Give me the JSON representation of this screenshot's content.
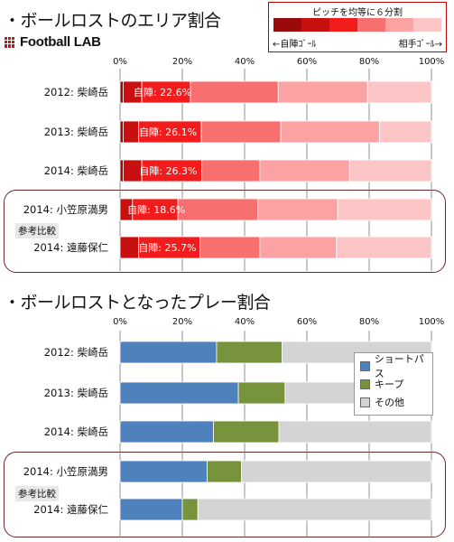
{
  "titles": {
    "chart1": "・ボールロストのエリア割合",
    "chart2": "・ボールロストとなったプレー割合"
  },
  "logo": {
    "text": "Football LAB",
    "color": "#c8161d"
  },
  "legend1": {
    "title": "ピッチを均等に６分割",
    "left": "←自陣ｺﾞｰﾙ",
    "right": "相手ｺﾞｰﾙ→",
    "colors": [
      "#9b0a0a",
      "#c91010",
      "#f21c1c",
      "#f86f6f",
      "#fba3a3",
      "#fdc6c6"
    ]
  },
  "ref_label": "参考比較",
  "chart_data": [
    {
      "type": "bar",
      "stacked": "horizontal",
      "title": "・ボールロストのエリア割合",
      "xlim": [
        0,
        100
      ],
      "xticks": [
        "0%",
        "20%",
        "40%",
        "60%",
        "80%",
        "100%"
      ],
      "categories": [
        "2012: 柴崎岳",
        "2013: 柴崎岳",
        "2014: 柴崎岳",
        "2014: 小笠原満男",
        "2014: 遠藤保仁"
      ],
      "series": [
        {
          "values": [
            1,
            1,
            1,
            0,
            0
          ],
          "color": "#9b0a0a"
        },
        {
          "values": [
            6,
            5,
            6,
            4,
            6
          ],
          "color": "#c91010"
        },
        {
          "values": [
            15.6,
            20.1,
            19.3,
            14.6,
            19.7
          ],
          "color": "#f21c1c"
        },
        {
          "values": [
            28.2,
            25.5,
            18.6,
            25.7,
            19.2
          ],
          "color": "#f86f6f"
        },
        {
          "values": [
            28.7,
            31.7,
            28.8,
            25.6,
            24.6
          ],
          "color": "#fba3a3"
        },
        {
          "values": [
            20.5,
            16.7,
            26.3,
            30.1,
            30.5
          ],
          "color": "#fdc6c6"
        }
      ],
      "annotation_prefix": "自陣: ",
      "annotations": [
        "22.6%",
        "26.1%",
        "26.3%",
        "18.6%",
        "25.7%"
      ]
    },
    {
      "type": "bar",
      "stacked": "horizontal",
      "title": "・ボールロストとなったプレー割合",
      "xlim": [
        0,
        100
      ],
      "xticks": [
        "0%",
        "20%",
        "40%",
        "60%",
        "80%",
        "100%"
      ],
      "categories": [
        "2012: 柴崎岳",
        "2013: 柴崎岳",
        "2014: 柴崎岳",
        "2014: 小笠原満男",
        "2014: 遠藤保仁"
      ],
      "series": [
        {
          "name": "ショートパス",
          "values": [
            31,
            38,
            30,
            28,
            20
          ],
          "color": "#4f81bd"
        },
        {
          "name": "キープ",
          "values": [
            21,
            15,
            21,
            11,
            5
          ],
          "color": "#77933c"
        },
        {
          "name": "その他",
          "values": [
            48,
            47,
            49,
            61,
            75
          ],
          "color": "#d4d4d4"
        }
      ],
      "legend_position": "right"
    }
  ]
}
